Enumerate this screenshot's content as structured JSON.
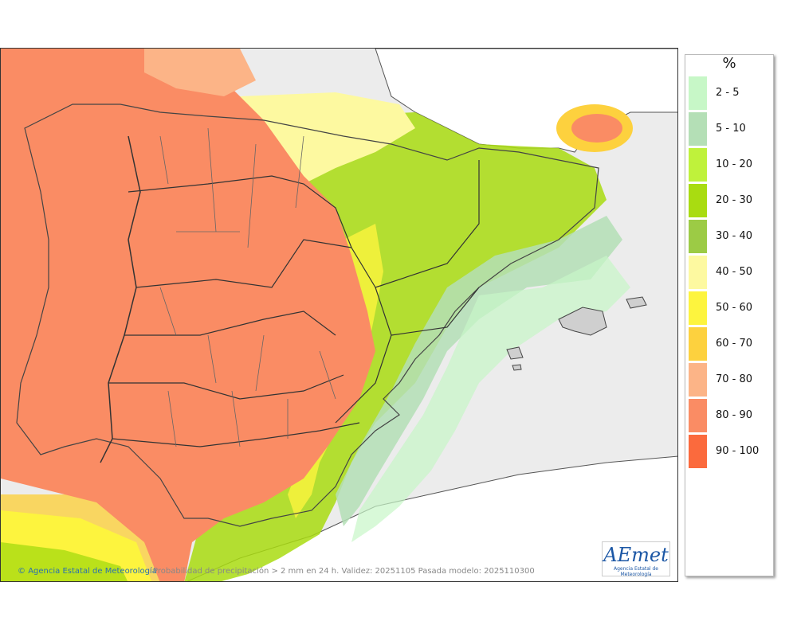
{
  "legend": {
    "unit": "%",
    "classes": [
      {
        "label": "2 - 5",
        "color": "#c7f7c7"
      },
      {
        "label": "5 - 10",
        "color": "#b4dfb6"
      },
      {
        "label": "10 - 20",
        "color": "#bff23b"
      },
      {
        "label": "20 - 30",
        "color": "#a9dc11"
      },
      {
        "label": "30 - 40",
        "color": "#9ccb45"
      },
      {
        "label": "40 - 50",
        "color": "#fdf9a0"
      },
      {
        "label": "50 - 60",
        "color": "#fdf43e"
      },
      {
        "label": "60 - 70",
        "color": "#fdd13e"
      },
      {
        "label": "70 - 80",
        "color": "#fcb487"
      },
      {
        "label": "80 - 90",
        "color": "#fa8c64"
      },
      {
        "label": "90 - 100",
        "color": "#fb6a3d"
      }
    ]
  },
  "footer": {
    "credit": "Agencia Estatal de Meteorología",
    "caption": "Probabilidad de precipitación > 2 mm en 24 h. Validez: 20251105 Pasada modelo: 2025110300"
  },
  "logo": {
    "text": "AEmet",
    "subtitle": "Agencia Estatal de Meteorología"
  },
  "map": {
    "land_color": "#ffffff",
    "sea_color": "#ececec",
    "border_color": "#333333"
  }
}
